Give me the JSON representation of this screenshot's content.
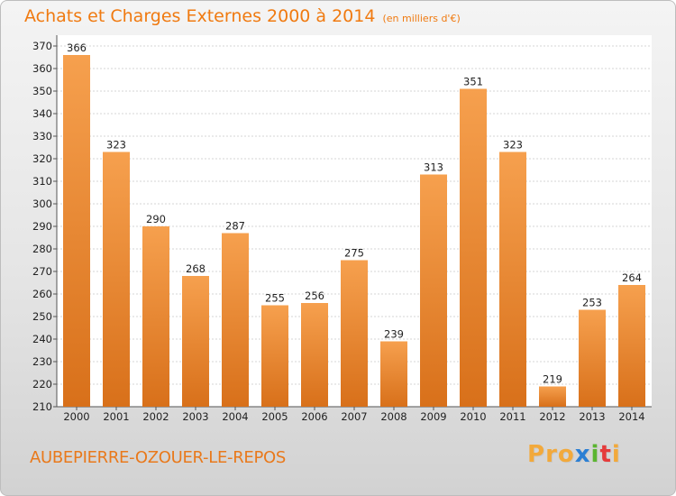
{
  "chart_data": {
    "type": "bar",
    "title": "Achats et Charges Externes 2000 à 2014",
    "unit_note": "(en milliers d'€)",
    "xlabel": "",
    "ylabel": "",
    "categories": [
      "2000",
      "2001",
      "2002",
      "2003",
      "2004",
      "2005",
      "2006",
      "2007",
      "2008",
      "2009",
      "2010",
      "2011",
      "2012",
      "2013",
      "2014"
    ],
    "values": [
      366,
      323,
      290,
      268,
      287,
      255,
      256,
      275,
      239,
      313,
      351,
      323,
      219,
      253,
      264
    ],
    "ylim": [
      210,
      370
    ],
    "yticks": [
      210,
      220,
      230,
      240,
      250,
      260,
      270,
      280,
      290,
      300,
      310,
      320,
      330,
      340,
      350,
      360,
      370
    ],
    "grid": true,
    "bar_color": "#f2923a",
    "bar_color_dark": "#d8701a"
  },
  "footer": {
    "location": "AUBEPIERRE-OZOUER-LE-REPOS",
    "logo_letters": [
      "P",
      "r",
      "o",
      "x",
      "i",
      "t",
      "i"
    ],
    "logo_colors": [
      "#f2a93b",
      "#f2a93b",
      "#f2a93b",
      "#2b7fd4",
      "#5bb531",
      "#e53b3b",
      "#f2a93b"
    ]
  }
}
